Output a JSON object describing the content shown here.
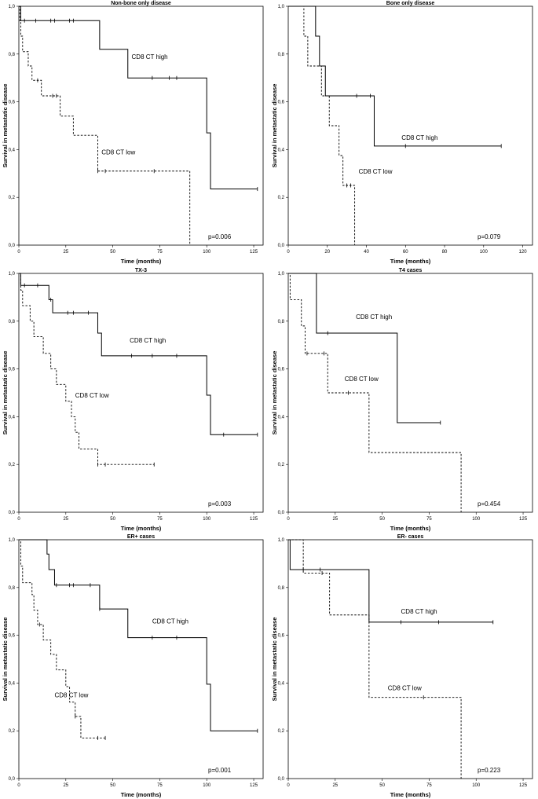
{
  "chart_data": [
    {
      "type": "line",
      "title": "Non-bone only disease",
      "xlabel": "Time (months)",
      "ylabel": "Survival in metastatic disease",
      "xlim": [
        0,
        130
      ],
      "ylim": [
        0,
        1
      ],
      "xticks": [
        0,
        25,
        50,
        75,
        100,
        125
      ],
      "yticks": [
        "0,0",
        "0,2",
        "0,4",
        "0,6",
        "0,8",
        "1,0"
      ],
      "grid": false,
      "p_value": "p=0.006",
      "series": [
        {
          "name": "CD8 CT high",
          "style": "solid",
          "steps": [
            [
              0,
              1.0
            ],
            [
              1,
              0.94
            ],
            [
              43,
              0.82
            ],
            [
              58,
              0.7
            ],
            [
              100,
              0.47
            ],
            [
              102,
              0.235
            ],
            [
              127,
              0.235
            ]
          ],
          "censored": [
            [
              3,
              0.94
            ],
            [
              9,
              0.94
            ],
            [
              17,
              0.94
            ],
            [
              19,
              0.94
            ],
            [
              27,
              0.94
            ],
            [
              29,
              0.94
            ],
            [
              71,
              0.7
            ],
            [
              80,
              0.7
            ],
            [
              84,
              0.7
            ],
            [
              127,
              0.235
            ]
          ]
        },
        {
          "name": "CD8 CT low",
          "style": "dashed",
          "steps": [
            [
              0,
              1.0
            ],
            [
              0.5,
              0.94
            ],
            [
              1,
              0.875
            ],
            [
              2,
              0.81
            ],
            [
              5,
              0.75
            ],
            [
              7,
              0.69
            ],
            [
              12,
              0.625
            ],
            [
              22,
              0.54
            ],
            [
              29,
              0.46
            ],
            [
              42,
              0.31
            ],
            [
              91,
              0.0
            ]
          ],
          "censored": [
            [
              10,
              0.69
            ],
            [
              18,
              0.625
            ],
            [
              20,
              0.625
            ],
            [
              42,
              0.31
            ],
            [
              46,
              0.31
            ],
            [
              72,
              0.31
            ]
          ]
        }
      ],
      "annotations": [
        {
          "text": "CD8 CT high",
          "x": 60,
          "y": 0.78
        },
        {
          "text": "CD8 CT low",
          "x": 44,
          "y": 0.38
        }
      ]
    },
    {
      "type": "line",
      "title": "Bone only disease",
      "xlabel": "Time (months)",
      "ylabel": "Survival in metastatic disease",
      "xlim": [
        0,
        125
      ],
      "ylim": [
        0,
        1
      ],
      "xticks": [
        0,
        20,
        40,
        60,
        80,
        100,
        120
      ],
      "yticks": [
        "0,0",
        "0,2",
        "0,4",
        "0,6",
        "0,8",
        "1,0"
      ],
      "grid": false,
      "p_value": "p=0.079",
      "series": [
        {
          "name": "CD8 CT high",
          "style": "solid",
          "steps": [
            [
              0,
              1.0
            ],
            [
              14,
              0.875
            ],
            [
              16,
              0.75
            ],
            [
              19,
              0.625
            ],
            [
              44,
              0.415
            ],
            [
              109,
              0.415
            ]
          ],
          "censored": [
            [
              35,
              0.625
            ],
            [
              42,
              0.625
            ],
            [
              60,
              0.415
            ],
            [
              109,
              0.415
            ]
          ]
        },
        {
          "name": "CD8 CT low",
          "style": "dashed",
          "steps": [
            [
              0,
              1.0
            ],
            [
              8,
              0.875
            ],
            [
              10,
              0.75
            ],
            [
              17,
              0.625
            ],
            [
              21,
              0.5
            ],
            [
              26,
              0.375
            ],
            [
              28,
              0.25
            ],
            [
              34,
              0.0
            ]
          ],
          "censored": [
            [
              30,
              0.25
            ],
            [
              32,
              0.25
            ]
          ]
        }
      ],
      "annotations": [
        {
          "text": "CD8 CT high",
          "x": 58,
          "y": 0.44
        },
        {
          "text": "CD8 CT low",
          "x": 36,
          "y": 0.3
        }
      ]
    },
    {
      "type": "line",
      "title": "TX-3",
      "xlabel": "Time (months)",
      "ylabel": "Survival in metastatic disease",
      "xlim": [
        0,
        130
      ],
      "ylim": [
        0,
        1
      ],
      "xticks": [
        0,
        25,
        50,
        75,
        100,
        125
      ],
      "yticks": [
        "0,0",
        "0,2",
        "0,4",
        "0,6",
        "0,8",
        "1,0"
      ],
      "grid": false,
      "p_value": "p=0.003",
      "series": [
        {
          "name": "CD8 CT high",
          "style": "solid",
          "steps": [
            [
              0,
              1.0
            ],
            [
              1,
              0.95
            ],
            [
              16,
              0.89
            ],
            [
              18,
              0.835
            ],
            [
              42,
              0.75
            ],
            [
              44,
              0.655
            ],
            [
              100,
              0.49
            ],
            [
              102,
              0.325
            ],
            [
              127,
              0.325
            ]
          ],
          "censored": [
            [
              3,
              0.95
            ],
            [
              10,
              0.95
            ],
            [
              17,
              0.89
            ],
            [
              26,
              0.835
            ],
            [
              29,
              0.835
            ],
            [
              37,
              0.835
            ],
            [
              60,
              0.655
            ],
            [
              71,
              0.655
            ],
            [
              84,
              0.655
            ],
            [
              109,
              0.325
            ],
            [
              127,
              0.325
            ]
          ]
        },
        {
          "name": "CD8 CT low",
          "style": "dashed",
          "steps": [
            [
              0,
              1.0
            ],
            [
              1,
              0.93
            ],
            [
              2,
              0.865
            ],
            [
              6,
              0.8
            ],
            [
              8,
              0.735
            ],
            [
              13,
              0.665
            ],
            [
              17,
              0.6
            ],
            [
              20,
              0.535
            ],
            [
              25,
              0.465
            ],
            [
              28,
              0.4
            ],
            [
              30,
              0.335
            ],
            [
              32,
              0.265
            ],
            [
              42,
              0.2
            ],
            [
              72,
              0.2
            ]
          ],
          "censored": [
            [
              42,
              0.2
            ],
            [
              46,
              0.2
            ],
            [
              72,
              0.2
            ]
          ]
        }
      ],
      "annotations": [
        {
          "text": "CD8 CT high",
          "x": 59,
          "y": 0.71
        },
        {
          "text": "CD8 CT low",
          "x": 30,
          "y": 0.48
        }
      ]
    },
    {
      "type": "line",
      "title": "T4 cases",
      "xlabel": "Time (months)",
      "ylabel": "Survival in metastatic disease",
      "xlim": [
        0,
        130
      ],
      "ylim": [
        0,
        1
      ],
      "xticks": [
        0,
        25,
        50,
        75,
        100,
        125
      ],
      "yticks": [
        "0,0",
        "0,2",
        "0,4",
        "0,6",
        "0,8",
        "1,0"
      ],
      "grid": false,
      "p_value": "p=0.454",
      "series": [
        {
          "name": "CD8 CT high",
          "style": "solid",
          "steps": [
            [
              0,
              1.0
            ],
            [
              15,
              0.75
            ],
            [
              58,
              0.375
            ],
            [
              81,
              0.375
            ]
          ],
          "censored": [
            [
              21,
              0.75
            ],
            [
              81,
              0.375
            ]
          ]
        },
        {
          "name": "CD8 CT low",
          "style": "dashed",
          "steps": [
            [
              0,
              1.0
            ],
            [
              1,
              0.89
            ],
            [
              7,
              0.78
            ],
            [
              9,
              0.665
            ],
            [
              21,
              0.5
            ],
            [
              43,
              0.25
            ],
            [
              92,
              0.0
            ]
          ],
          "censored": [
            [
              10,
              0.665
            ],
            [
              19,
              0.665
            ],
            [
              32,
              0.5
            ]
          ]
        }
      ],
      "annotations": [
        {
          "text": "CD8 CT high",
          "x": 36,
          "y": 0.81
        },
        {
          "text": "CD8 CT low",
          "x": 30,
          "y": 0.55
        }
      ]
    },
    {
      "type": "line",
      "title": "ER+ cases",
      "xlabel": "Time (months)",
      "ylabel": "Survival in metastatic disease",
      "xlim": [
        0,
        130
      ],
      "ylim": [
        0,
        1
      ],
      "xticks": [
        0,
        25,
        50,
        75,
        100,
        125
      ],
      "yticks": [
        "0,0",
        "0,2",
        "0,4",
        "0,6",
        "0,8",
        "1,0"
      ],
      "grid": false,
      "p_value": "p=0.001",
      "series": [
        {
          "name": "CD8 CT high",
          "style": "solid",
          "steps": [
            [
              0,
              1.0
            ],
            [
              15,
              0.94
            ],
            [
              16,
              0.875
            ],
            [
              19,
              0.81
            ],
            [
              43,
              0.71
            ],
            [
              58,
              0.59
            ],
            [
              100,
              0.395
            ],
            [
              102,
              0.2
            ],
            [
              127,
              0.2
            ]
          ],
          "censored": [
            [
              20,
              0.81
            ],
            [
              27,
              0.81
            ],
            [
              29,
              0.81
            ],
            [
              38,
              0.81
            ],
            [
              43,
              0.71
            ],
            [
              71,
              0.59
            ],
            [
              84,
              0.59
            ],
            [
              127,
              0.2
            ]
          ]
        },
        {
          "name": "CD8 CT low",
          "style": "dashed",
          "steps": [
            [
              0,
              1.0
            ],
            [
              1,
              0.89
            ],
            [
              2,
              0.82
            ],
            [
              7,
              0.77
            ],
            [
              8,
              0.705
            ],
            [
              10,
              0.645
            ],
            [
              13,
              0.58
            ],
            [
              17,
              0.52
            ],
            [
              20,
              0.455
            ],
            [
              25,
              0.385
            ],
            [
              27,
              0.32
            ],
            [
              30,
              0.26
            ],
            [
              33,
              0.17
            ],
            [
              46,
              0.17
            ]
          ],
          "censored": [
            [
              11,
              0.645
            ],
            [
              30,
              0.26
            ],
            [
              42,
              0.17
            ],
            [
              46,
              0.17
            ]
          ]
        }
      ],
      "annotations": [
        {
          "text": "CD8 CT high",
          "x": 71,
          "y": 0.65
        },
        {
          "text": "CD8 CT low",
          "x": 19,
          "y": 0.34
        }
      ]
    },
    {
      "type": "line",
      "title": "ER- cases",
      "xlabel": "Time (months)",
      "ylabel": "Survival in metastatic disease",
      "xlim": [
        0,
        130
      ],
      "ylim": [
        0,
        1
      ],
      "xticks": [
        0,
        25,
        50,
        75,
        100,
        125
      ],
      "yticks": [
        "0,0",
        "0,2",
        "0,4",
        "0,6",
        "0,8",
        "1,0"
      ],
      "grid": false,
      "p_value": "p=0.223",
      "series": [
        {
          "name": "CD8 CT high",
          "style": "solid",
          "steps": [
            [
              0,
              1.0
            ],
            [
              1,
              0.875
            ],
            [
              43,
              0.655
            ],
            [
              109,
              0.655
            ]
          ],
          "censored": [
            [
              8,
              0.875
            ],
            [
              17,
              0.875
            ],
            [
              60,
              0.655
            ],
            [
              80,
              0.655
            ],
            [
              109,
              0.655
            ]
          ]
        },
        {
          "name": "CD8 CT low",
          "style": "dashed",
          "steps": [
            [
              0,
              1.0
            ],
            [
              8,
              0.86
            ],
            [
              22,
              0.685
            ],
            [
              43,
              0.34
            ],
            [
              92,
              0.0
            ]
          ],
          "censored": [
            [
              18,
              0.86
            ],
            [
              72,
              0.34
            ]
          ]
        }
      ],
      "annotations": [
        {
          "text": "CD8 CT high",
          "x": 60,
          "y": 0.69
        },
        {
          "text": "CD8 CT low",
          "x": 53,
          "y": 0.37
        }
      ]
    }
  ]
}
